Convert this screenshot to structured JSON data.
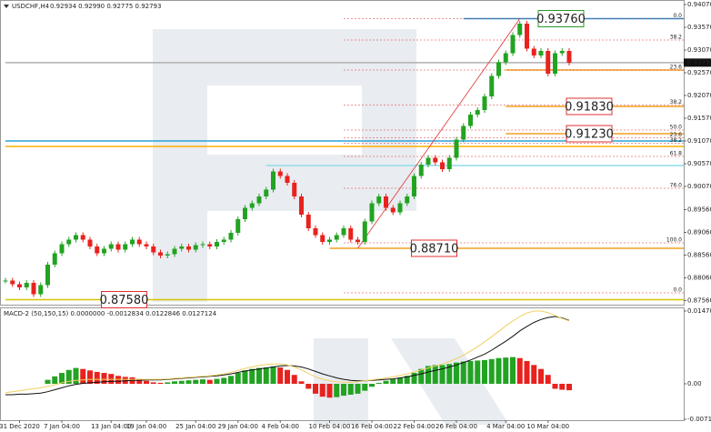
{
  "chart_data": {
    "type": "candlestick",
    "symbol": "USDCHF,H4",
    "quote": "0.92934 0.92990 0.92775 0.92793",
    "categories": [
      null,
      null,
      "31 Dec 2020",
      null,
      null,
      null,
      null,
      null,
      "7 Jan 04:00",
      null,
      null,
      null,
      null,
      null,
      null,
      "13 Jan 04:00",
      null,
      null,
      null,
      null,
      "19 Jan 04:00",
      null,
      null,
      null,
      null,
      null,
      null,
      "25 Jan 04:00",
      null,
      null,
      null,
      null,
      null,
      "29 Jan 04:00",
      null,
      null,
      null,
      null,
      null,
      "4 Feb 04:00",
      null,
      null,
      null,
      null,
      null,
      null,
      "10 Feb 04:00",
      null,
      null,
      null,
      null,
      null,
      "16 Feb 04:00",
      null,
      null,
      null,
      null,
      null,
      "22 Feb 04:00",
      null,
      null,
      null,
      null,
      null,
      "26 Feb 04:00",
      null,
      null,
      null,
      null,
      null,
      null,
      "4 Mar 04:00",
      null,
      null,
      null,
      null,
      null,
      "10 Mar 04:00",
      null,
      null,
      null
    ],
    "close": [
      0.88,
      0.8792,
      0.8785,
      0.8795,
      0.877,
      0.879,
      0.8835,
      0.886,
      0.888,
      0.889,
      0.89,
      0.889,
      0.8875,
      0.886,
      0.887,
      0.888,
      0.8868,
      0.888,
      0.889,
      0.888,
      0.8875,
      0.8862,
      0.8855,
      0.8858,
      0.887,
      0.8875,
      0.8868,
      0.8878,
      0.888,
      0.8875,
      0.8885,
      0.889,
      0.8905,
      0.8935,
      0.896,
      0.897,
      0.8985,
      0.9,
      0.904,
      0.903,
      0.9015,
      0.8985,
      0.8945,
      0.8915,
      0.89,
      0.8885,
      0.889,
      0.89,
      0.8915,
      0.889,
      0.8885,
      0.893,
      0.897,
      0.8985,
      0.896,
      0.895,
      0.897,
      0.8985,
      0.903,
      0.9055,
      0.907,
      0.906,
      0.9045,
      0.907,
      0.911,
      0.914,
      0.9165,
      0.9175,
      0.9205,
      0.925,
      0.928,
      0.93,
      0.934,
      0.9365,
      0.931,
      0.9295,
      0.9305,
      0.9255,
      0.93,
      0.9305,
      0.9279
    ],
    "up_color": "#22a322",
    "down_color": "#e8221e",
    "ylim": [
      0.8747,
      0.9417
    ],
    "yticks": [
      {
        "value": 0.9407,
        "label": "0.94070"
      },
      {
        "value": 0.9357,
        "label": "0.93570"
      },
      {
        "value": 0.9307,
        "label": "0.93070"
      },
      {
        "value": 0.9257,
        "label": "0.92570"
      },
      {
        "value": 0.9207,
        "label": "0.92070"
      },
      {
        "value": 0.9157,
        "label": "0.91570"
      },
      {
        "value": 0.9107,
        "label": "0.91070"
      },
      {
        "value": 0.9057,
        "label": "0.90570"
      },
      {
        "value": 0.9007,
        "label": "0.90070"
      },
      {
        "value": 0.8956,
        "label": "0.89560"
      },
      {
        "value": 0.8906,
        "label": "0.89060"
      },
      {
        "value": 0.8856,
        "label": "0.88560"
      },
      {
        "value": 0.8806,
        "label": "0.88060"
      },
      {
        "value": 0.8756,
        "label": "0.87560"
      }
    ],
    "current_price": {
      "value": 0.92793,
      "label": "0.92793"
    },
    "levels": [
      {
        "price": 0.9376,
        "color": "#1e8fd6",
        "start": 65
      },
      {
        "price": 0.9107,
        "color": "#29a3d6",
        "start": 0
      },
      {
        "price": 0.9095,
        "color": "#ffb000",
        "start": 0
      },
      {
        "price": 0.9053,
        "color": "#8fdcea",
        "start": 37
      },
      {
        "price": 0.92793,
        "color": "#b0b0b0",
        "start": 0
      },
      {
        "price": 0.9263,
        "color": "#f0a020",
        "start": 71
      },
      {
        "price": 0.9183,
        "color": "#f0a020",
        "start": 71
      },
      {
        "price": 0.9123,
        "color": "#f0a020",
        "start": 71
      },
      {
        "price": 0.8871,
        "color": "#f0a020",
        "start": 46
      },
      {
        "price": 0.8758,
        "color": "#d4c400",
        "start": 0
      }
    ],
    "fibo": {
      "color": "#e03030",
      "start": 48,
      "levels": [
        {
          "label": "0.0",
          "price": 0.9376
        },
        {
          "label": "38.2",
          "price": 0.9329
        },
        {
          "label": "23.6",
          "price": 0.9263
        },
        {
          "label": "38.2",
          "price": 0.9186
        },
        {
          "label": "50.0",
          "price": 0.9131
        },
        {
          "label": "23.6",
          "price": 0.9114
        },
        {
          "label": "38.2",
          "price": 0.9102
        },
        {
          "label": "61.8",
          "price": 0.9073
        },
        {
          "label": "76.0",
          "price": 0.9003
        },
        {
          "label": "100.0",
          "price": 0.8883
        },
        {
          "label": "0.0",
          "price": 0.8773
        }
      ]
    },
    "trendline": {
      "x": [
        50,
        73
      ],
      "y": [
        0.8871,
        0.9376
      ],
      "color": "#e03030"
    },
    "annotations": [
      {
        "label": "0.93760",
        "value": 0.9376,
        "color": "#2a9a2a",
        "at": 76
      },
      {
        "label": "0.91830",
        "value": 0.9183,
        "color": "#e03030",
        "at": 80
      },
      {
        "label": "0.91230",
        "value": 0.9123,
        "color": "#e03030",
        "at": 80
      },
      {
        "label": "0.88710",
        "value": 0.8871,
        "color": "#e03030",
        "at": 58
      },
      {
        "label": "0.87580",
        "value": 0.8758,
        "color": "#e03030",
        "at": 14
      }
    ],
    "macd": {
      "title": "MACD-2 (50,150,15) 0.0000000 -0.0012834 0.0122846 0.0127124",
      "ylim": [
        -0.00735,
        0.01544
      ],
      "yticks": [
        0.0147039,
        {
          "value": 0,
          "label": "0.00"
        },
        -0.007163
      ],
      "histogram": [
        null,
        null,
        null,
        null,
        null,
        null,
        0.0008,
        0.0015,
        0.0022,
        0.0028,
        0.0032,
        0.003,
        0.0027,
        0.0024,
        0.0022,
        0.002,
        0.0016,
        0.0014,
        0.0013,
        0.001,
        0.0006,
        0.0003,
        0.0002,
        0.0003,
        0.0005,
        0.0006,
        0.0007,
        0.0008,
        0.0009,
        0.0008,
        0.001,
        0.0012,
        0.0016,
        0.0022,
        0.0027,
        0.003,
        0.0032,
        0.0033,
        0.0035,
        0.0033,
        0.0028,
        0.0018,
        0.0005,
        -0.001,
        -0.002,
        -0.0026,
        -0.0028,
        -0.0027,
        -0.0024,
        -0.0022,
        -0.002,
        -0.0014,
        -0.0006,
        0.0002,
        0.0006,
        0.0009,
        0.0012,
        0.0016,
        0.0022,
        0.003,
        0.0036,
        0.0038,
        0.0038,
        0.004,
        0.0043,
        0.0045,
        0.0046,
        0.0047,
        0.0048,
        0.005,
        0.0052,
        0.0053,
        0.0054,
        0.0052,
        0.0046,
        0.0038,
        0.003,
        0.0018,
        -0.001,
        -0.0012,
        -0.0013
      ],
      "lines": [
        {
          "color": "#111111",
          "values": [
            -0.0022,
            -0.0022,
            -0.0021,
            -0.0021,
            -0.002,
            -0.0019,
            -0.0016,
            -0.0012,
            -0.0008,
            -0.0004,
            -0.0001,
            0.0001,
            0.0002,
            0.0003,
            0.0004,
            0.0005,
            0.0005,
            0.0006,
            0.0007,
            0.0007,
            0.0008,
            0.0008,
            0.0008,
            0.0009,
            0.001,
            0.0011,
            0.0012,
            0.0013,
            0.0014,
            0.0015,
            0.0016,
            0.0018,
            0.002,
            0.0023,
            0.0026,
            0.0028,
            0.003,
            0.0032,
            0.0034,
            0.0036,
            0.0037,
            0.0036,
            0.0034,
            0.003,
            0.0025,
            0.002,
            0.0016,
            0.0012,
            0.0009,
            0.0007,
            0.0006,
            0.0006,
            0.0007,
            0.0008,
            0.0009,
            0.001,
            0.0012,
            0.0014,
            0.0017,
            0.002,
            0.0024,
            0.0027,
            0.003,
            0.0034,
            0.0038,
            0.0043,
            0.0048,
            0.0054,
            0.006,
            0.0068,
            0.0077,
            0.0086,
            0.0096,
            0.0107,
            0.0116,
            0.0124,
            0.013,
            0.0134,
            0.0136,
            0.0133,
            0.0128
          ]
        },
        {
          "color": "#f0d060",
          "values": [
            -0.0018,
            -0.0016,
            -0.0014,
            -0.0012,
            -0.001,
            -0.0008,
            -0.0005,
            -0.0002,
            0.0002,
            0.0005,
            0.0007,
            0.0008,
            0.0009,
            0.0009,
            0.0009,
            0.0009,
            0.0009,
            0.0009,
            0.0009,
            0.0009,
            0.0009,
            0.0009,
            0.0009,
            0.001,
            0.0011,
            0.0012,
            0.0013,
            0.0014,
            0.0015,
            0.0016,
            0.0018,
            0.002,
            0.0023,
            0.0027,
            0.0031,
            0.0034,
            0.0037,
            0.0039,
            0.004,
            0.004,
            0.0038,
            0.0034,
            0.0028,
            0.0021,
            0.0014,
            0.0009,
            0.0006,
            0.0004,
            0.0003,
            0.0003,
            0.0004,
            0.0006,
            0.0008,
            0.001,
            0.0012,
            0.0014,
            0.0017,
            0.002,
            0.0024,
            0.0028,
            0.0032,
            0.0036,
            0.004,
            0.0045,
            0.0051,
            0.0058,
            0.0066,
            0.0075,
            0.0085,
            0.0095,
            0.0106,
            0.0117,
            0.0127,
            0.0136,
            0.0143,
            0.0147,
            0.0147,
            0.0144,
            0.0138,
            0.0132,
            0.0127
          ]
        }
      ]
    }
  }
}
